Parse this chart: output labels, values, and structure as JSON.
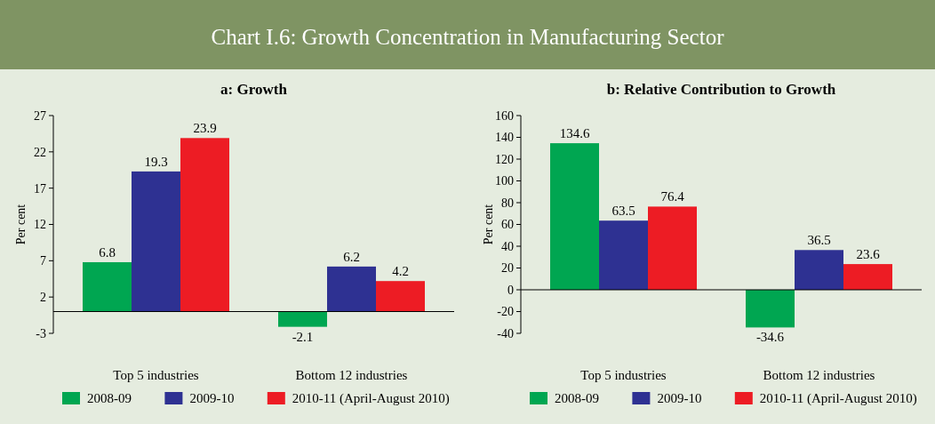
{
  "chart_data": [
    {
      "type": "other",
      "title": "Chart I.6: Growth Concentration in Manufacturing Sector"
    },
    {
      "type": "bar",
      "title": "a: Growth",
      "ylabel": "Per cent",
      "categories": [
        "Top 5 industries",
        "Bottom 12 industries"
      ],
      "series": [
        {
          "name": "2008-09",
          "color": "#00a651",
          "values": [
            6.8,
            -2.1
          ]
        },
        {
          "name": "2009-10",
          "color": "#2e3192",
          "values": [
            19.3,
            6.2
          ]
        },
        {
          "name": "2010-11 (April-August 2010)",
          "color": "#ed1c24",
          "values": [
            23.9,
            4.2
          ]
        }
      ],
      "ylim": [
        -3,
        27
      ],
      "yticks": [
        -3,
        2,
        7,
        12,
        17,
        22,
        27
      ],
      "data_labels": true,
      "legend": "bottom"
    },
    {
      "type": "bar",
      "title": "b: Relative Contribution to Growth",
      "ylabel": "Per cent",
      "categories": [
        "Top 5 industries",
        "Bottom 12 industries"
      ],
      "series": [
        {
          "name": "2008-09",
          "color": "#00a651",
          "values": [
            134.6,
            -34.6
          ]
        },
        {
          "name": "2009-10",
          "color": "#2e3192",
          "values": [
            63.5,
            36.5
          ]
        },
        {
          "name": "2010-11 (April-August 2010)",
          "color": "#ed1c24",
          "values": [
            76.4,
            23.6
          ]
        }
      ],
      "ylim": [
        -40,
        160
      ],
      "yticks": [
        -40,
        -20,
        0,
        20,
        40,
        60,
        80,
        100,
        120,
        140,
        160
      ],
      "data_labels": true,
      "legend": "bottom"
    }
  ]
}
